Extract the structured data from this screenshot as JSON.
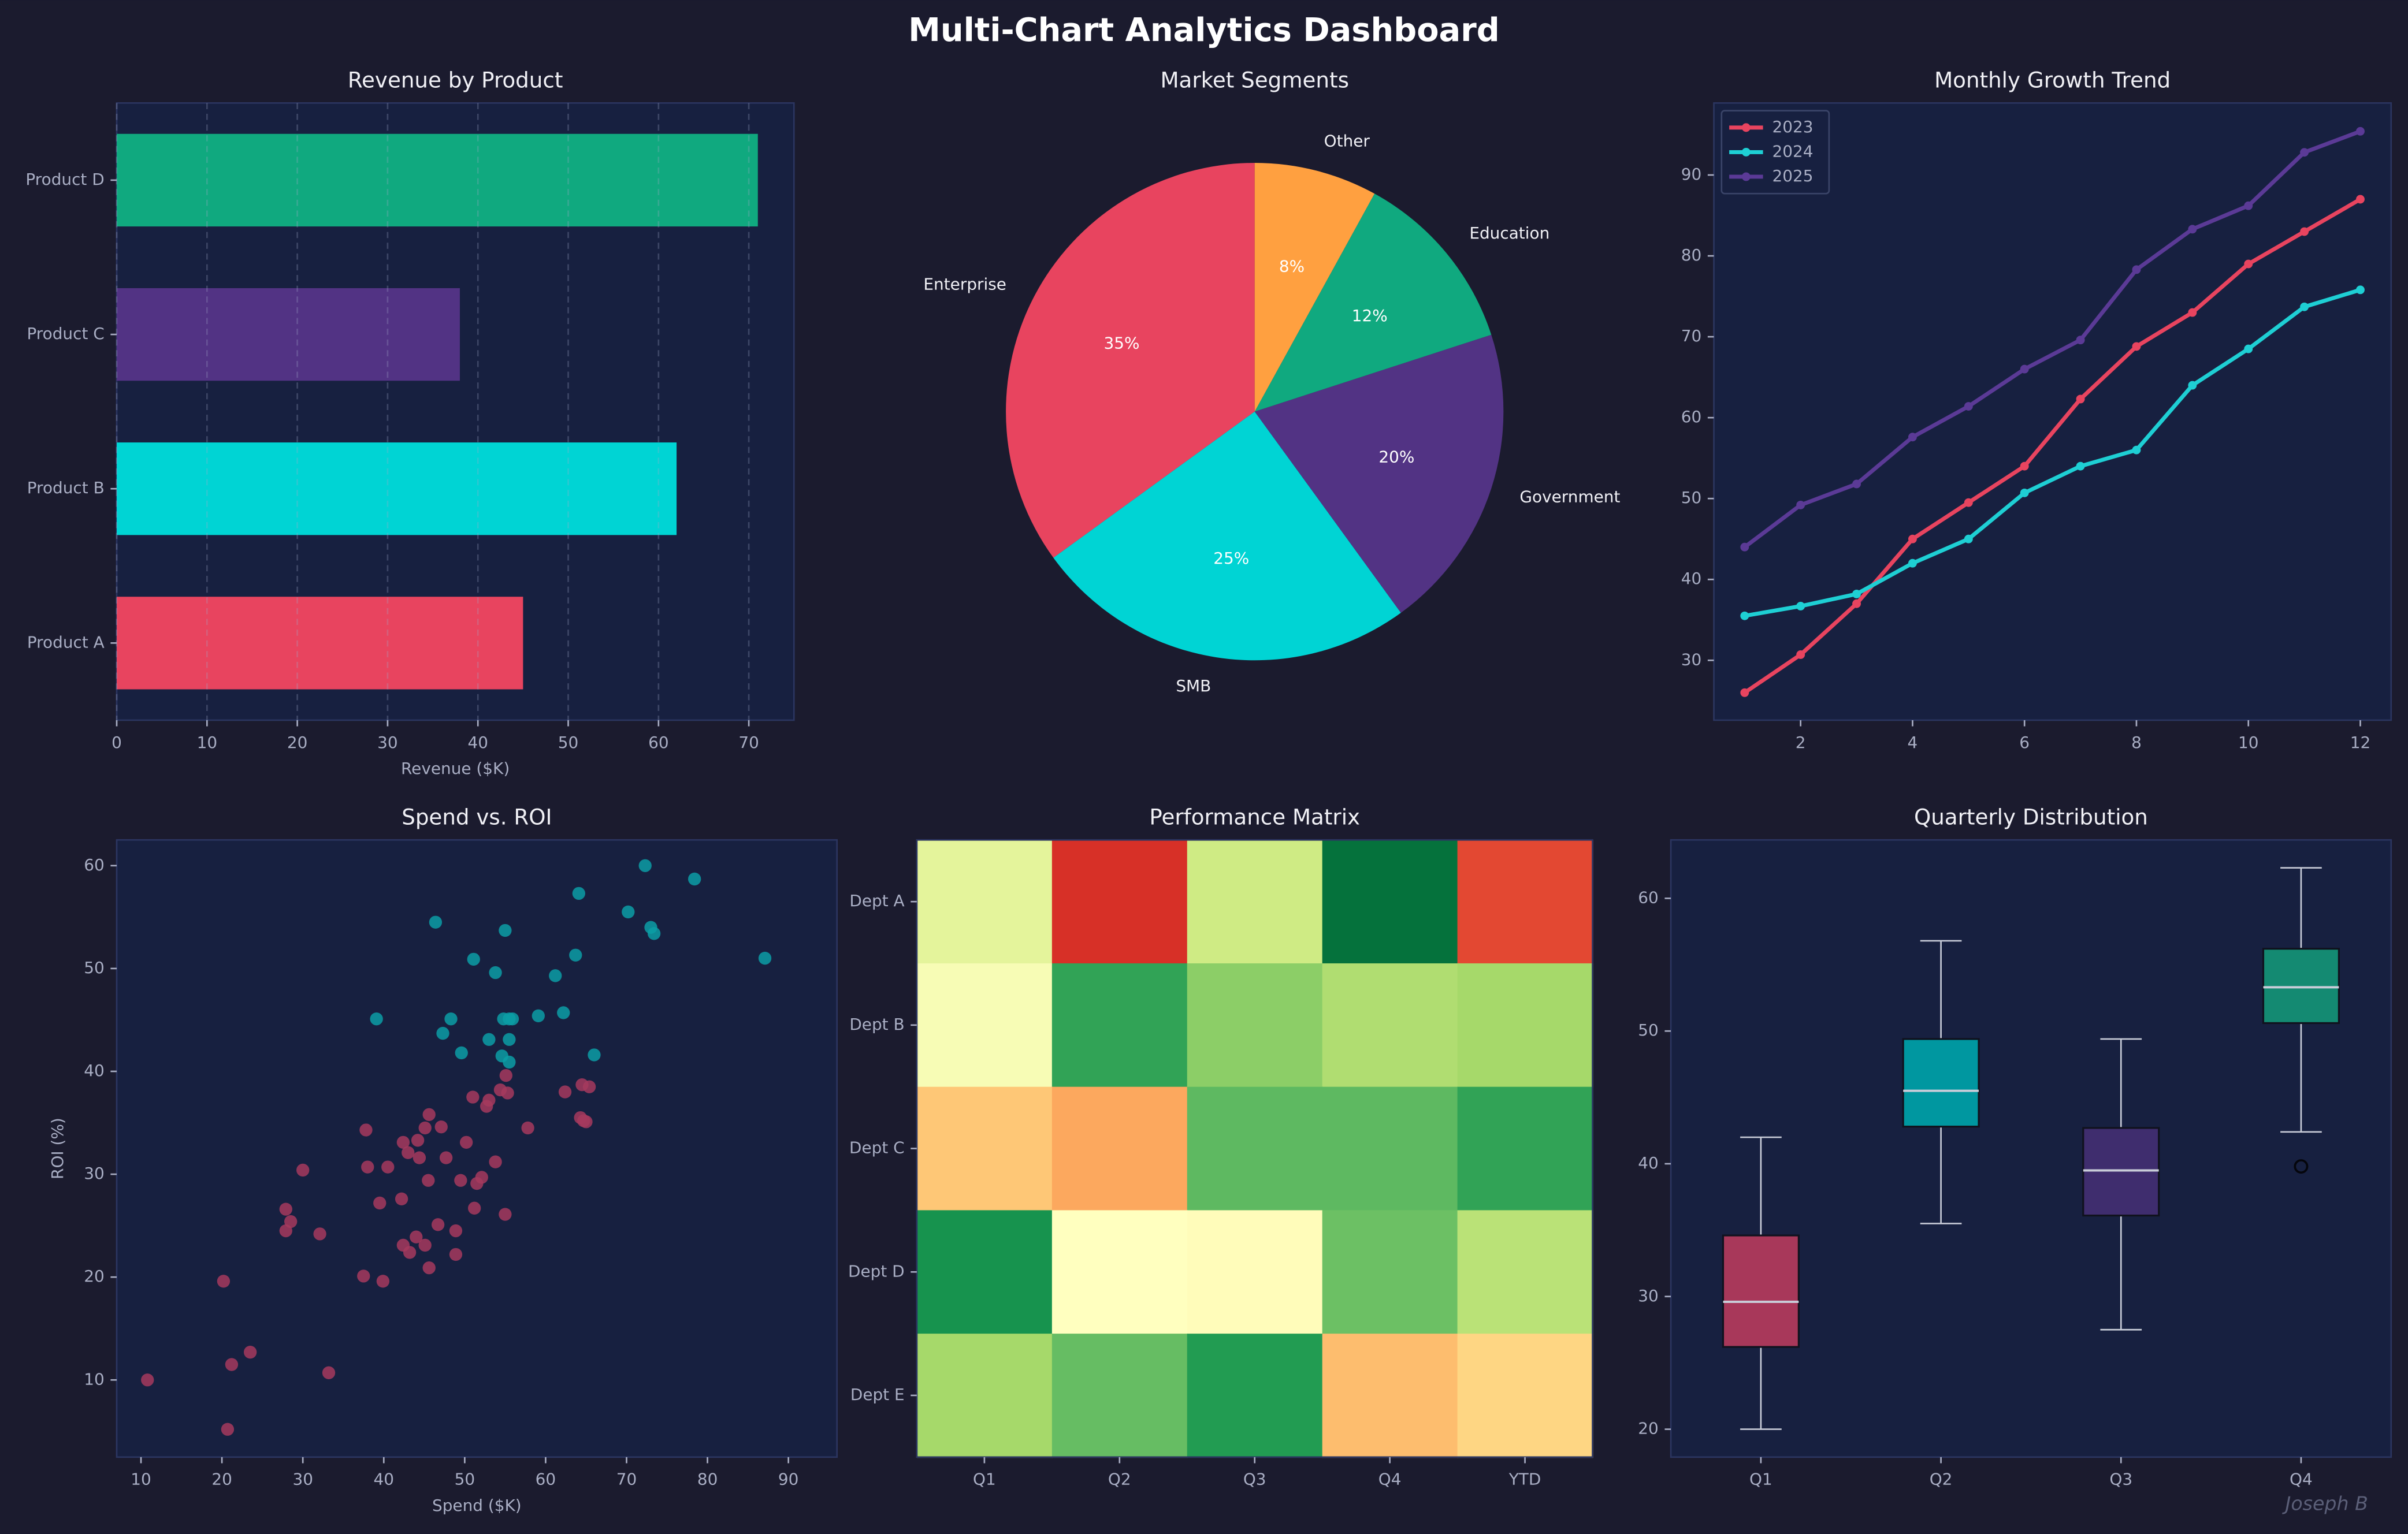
{
  "title": "Multi-Chart Analytics Dashboard",
  "watermark": "Joseph B",
  "chart_data": [
    {
      "type": "bar",
      "orientation": "horizontal",
      "title": "Revenue by Product",
      "xlabel": "Revenue ($K)",
      "categories": [
        "Product A",
        "Product B",
        "Product C",
        "Product D"
      ],
      "values": [
        45,
        62,
        38,
        71
      ],
      "colors": [
        "#e8445f",
        "#00d4d4",
        "#523384",
        "#10a97f"
      ],
      "xlim": [
        0,
        75
      ],
      "xticks": [
        0,
        10,
        20,
        30,
        40,
        50,
        60,
        70
      ],
      "grid": true
    },
    {
      "type": "pie",
      "title": "Market Segments",
      "categories": [
        "Enterprise",
        "SMB",
        "Government",
        "Education",
        "Other"
      ],
      "values": [
        35,
        25,
        20,
        12,
        8
      ],
      "value_labels": [
        "35%",
        "25%",
        "20%",
        "12%",
        "8%"
      ],
      "colors": [
        "#e8445f",
        "#00d4d4",
        "#523384",
        "#10a97f",
        "#ffa040"
      ],
      "startangle": 90,
      "counterclock": true
    },
    {
      "type": "line",
      "title": "Monthly Growth Trend",
      "x": [
        1,
        2,
        3,
        4,
        5,
        6,
        7,
        8,
        9,
        10,
        11,
        12
      ],
      "series": [
        {
          "name": "2023",
          "color": "#e8445f",
          "values": [
            26,
            30.7,
            37,
            45,
            49.5,
            54,
            62.3,
            68.8,
            73,
            79,
            83,
            87
          ]
        },
        {
          "name": "2024",
          "color": "#1ecfd4",
          "values": [
            35.5,
            36.7,
            38.2,
            42,
            45,
            50.7,
            54,
            56,
            64,
            68.5,
            73.7,
            75.8
          ]
        },
        {
          "name": "2025",
          "color": "#5b3a96",
          "values": [
            44,
            49.2,
            51.8,
            57.6,
            61.4,
            66,
            69.6,
            78.3,
            83.3,
            86.2,
            92.8,
            95.4
          ]
        }
      ],
      "xlim": [
        0.45,
        12.55
      ],
      "xticks": [
        2,
        4,
        6,
        8,
        10,
        12
      ],
      "ylim": [
        22.6,
        98.9
      ],
      "yticks": [
        30,
        40,
        50,
        60,
        70,
        80,
        90
      ],
      "legend": "upper-left"
    },
    {
      "type": "scatter",
      "title": "Spend vs. ROI",
      "xlabel": "Spend ($K)",
      "ylabel": "ROI (%)",
      "series": [
        {
          "color": "#a63a5e",
          "x": [
            10.8,
            20.7,
            21.2,
            23.5,
            20.2,
            33.2,
            27.9,
            28.5,
            27.9,
            30,
            32.1,
            37.8,
            38,
            37.5,
            39.5,
            39.9,
            40.5,
            42.2,
            42.4,
            43,
            42.4,
            43.2,
            44,
            44.2,
            44.4,
            45.1,
            45.6,
            45.1,
            45.5,
            45.6,
            47.1,
            46.7,
            47.7,
            48.9,
            48.9,
            49.5,
            50.2,
            51,
            51.2,
            51.5,
            52.1,
            52.7,
            53,
            53.8,
            54.4,
            55,
            55.1,
            55.3,
            57.8,
            62.4,
            64.3,
            64.7,
            65,
            64.5,
            65.4
          ],
          "values": [
            10,
            5.2,
            11.5,
            12.7,
            19.6,
            10.7,
            26.6,
            25.4,
            24.5,
            30.4,
            24.2,
            34.3,
            30.7,
            20.1,
            27.2,
            19.6,
            30.7,
            27.6,
            33.1,
            32.1,
            23.1,
            22.4,
            23.9,
            33.3,
            31.6,
            34.5,
            35.8,
            23.1,
            29.4,
            20.9,
            34.6,
            25.1,
            31.6,
            24.5,
            22.2,
            29.4,
            33.1,
            37.5,
            26.7,
            29.1,
            29.7,
            36.6,
            37.2,
            31.2,
            38.2,
            26.1,
            39.6,
            37.9,
            34.5,
            38,
            35.5,
            35.2,
            35.1,
            38.7,
            38.5
          ]
        },
        {
          "color": "#0c9ea6",
          "x": [
            39.1,
            46.4,
            48.3,
            47.3,
            49.6,
            51.1,
            53,
            53.8,
            55,
            54.8,
            55.5,
            55.9,
            54.6,
            55.5,
            55.5,
            59.1,
            61.2,
            62.2,
            63.7,
            64.1,
            66,
            70.2,
            72.3,
            73,
            73.4,
            78.4,
            87.1
          ],
          "values": [
            45.1,
            54.5,
            45.1,
            43.7,
            41.8,
            50.9,
            43.1,
            49.6,
            53.7,
            45.1,
            45.1,
            45.1,
            41.5,
            40.9,
            43.1,
            45.4,
            49.3,
            45.7,
            51.3,
            57.3,
            41.6,
            55.5,
            60,
            54,
            53.4,
            58.7,
            51
          ]
        }
      ],
      "xlim": [
        7,
        96
      ],
      "xticks": [
        10,
        20,
        30,
        40,
        50,
        60,
        70,
        80,
        90
      ],
      "ylim": [
        2.5,
        62.5
      ],
      "yticks": [
        10,
        20,
        30,
        40,
        50,
        60
      ]
    },
    {
      "type": "heatmap",
      "title": "Performance Matrix",
      "colormap": "RdYlGn",
      "zlim": [
        0,
        100
      ],
      "columns": [
        "Q1",
        "Q2",
        "Q3",
        "Q4",
        "YTD"
      ],
      "rows": [
        "Dept A",
        "Dept B",
        "Dept C",
        "Dept D",
        "Dept E"
      ],
      "values": [
        [
          57,
          10,
          62,
          98,
          14
        ],
        [
          52,
          87,
          74,
          68,
          70
        ],
        [
          35,
          29,
          81,
          81,
          87
        ],
        [
          91,
          50,
          49,
          79,
          66
        ],
        [
          70,
          80,
          89,
          33,
          38
        ]
      ]
    },
    {
      "type": "box",
      "title": "Quarterly Distribution",
      "categories": [
        "Q1",
        "Q2",
        "Q3",
        "Q4"
      ],
      "colors": [
        "#a8385a",
        "#0097a0",
        "#3f2d6e",
        "#148a72"
      ],
      "boxes": [
        {
          "whislo": 20,
          "q1": 26.2,
          "med": 29.6,
          "q3": 34.6,
          "whishi": 42,
          "fliers": []
        },
        {
          "whislo": 35.5,
          "q1": 42.8,
          "med": 45.5,
          "q3": 49.4,
          "whishi": 56.8,
          "fliers": []
        },
        {
          "whislo": 27.5,
          "q1": 36.1,
          "med": 39.5,
          "q3": 42.7,
          "whishi": 49.4,
          "fliers": []
        },
        {
          "whislo": 42.4,
          "q1": 50.6,
          "med": 53.3,
          "q3": 56.2,
          "whishi": 62.3,
          "fliers": [
            39.8
          ]
        }
      ],
      "ylim": [
        17.9,
        64.4
      ],
      "yticks": [
        20,
        30,
        40,
        50,
        60
      ]
    }
  ]
}
